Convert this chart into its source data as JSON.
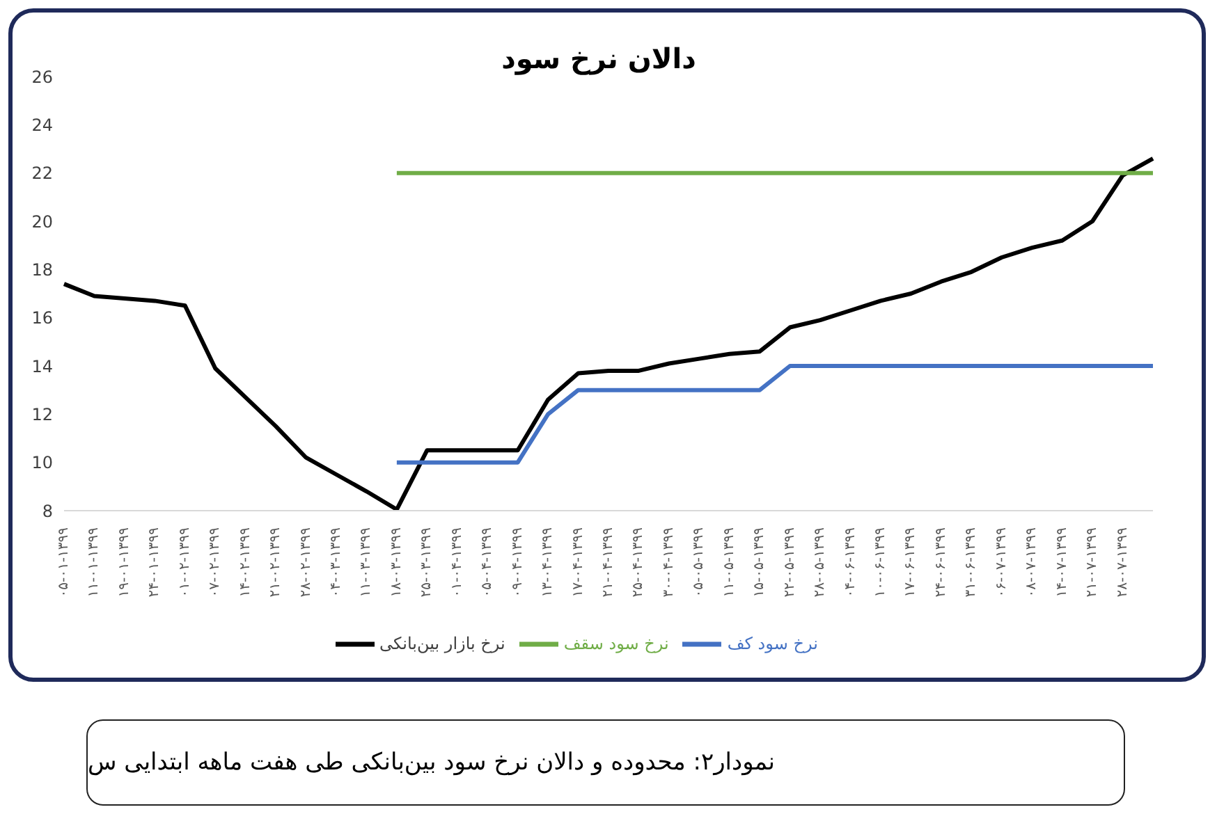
{
  "chart_data": {
    "type": "line",
    "title": "دالان نرخ سود",
    "annotations": [
      "نمودار۲:  محدوده و دالان نرخ سود بین‌بانکی طی هفت ماهه ابتدایی س"
    ],
    "categories": [
      "۰۵-۰۱-۱۳۹۹",
      "۱۱-۰۱-۱۳۹۹",
      "۱۹-۰۱-۱۳۹۹",
      "۲۴-۰۱-۱۳۹۹",
      "۰۱-۰۲-۱۳۹۹",
      "۰۷-۰۲-۱۳۹۹",
      "۱۴-۰۲-۱۳۹۹",
      "۲۱-۰۲-۱۳۹۹",
      "۲۸-۰۲-۱۳۹۹",
      "۰۴-۰۳-۱۳۹۹",
      "۱۱-۰۳-۱۳۹۹",
      "۱۸-۰۳-۱۳۹۹",
      "۲۵-۰۳-۱۳۹۹",
      "۰۱-۰۴-۱۳۹۹",
      "۰۵-۰۴-۱۳۹۹",
      "۰۹-۰۴-۱۳۹۹",
      "۱۳-۰۴-۱۳۹۹",
      "۱۷-۰۴-۱۳۹۹",
      "۲۱-۰۴-۱۳۹۹",
      "۲۵-۰۴-۱۳۹۹",
      "۳۰-۰۴-۱۳۹۹",
      "۰۵-۰۵-۱۳۹۹",
      "۱۱-۰۵-۱۳۹۹",
      "۱۵-۰۵-۱۳۹۹",
      "۲۲-۰۵-۱۳۹۹",
      "۲۸-۰۵-۱۳۹۹",
      "۰۴-۰۶-۱۳۹۹",
      "۱۰-۰۶-۱۳۹۹",
      "۱۷-۰۶-۱۳۹۹",
      "۲۴-۰۶-۱۳۹۹",
      "۳۱-۰۶-۱۳۹۹",
      "۰۶-۰۷-۱۳۹۹",
      "۰۸-۰۷-۱۳۹۹",
      "۱۴-۰۷-۱۳۹۹",
      "۲۱-۰۷-۱۳۹۹",
      "۲۸-۰۷-۱۳۹۹",
      null
    ],
    "series": [
      {
        "name": "نرخ بازار بین‌بانکی",
        "color": "#000000",
        "values": [
          17.4,
          16.9,
          16.8,
          16.7,
          16.5,
          13.9,
          12.7,
          11.5,
          10.2,
          9.5,
          8.8,
          8.05,
          10.5,
          10.5,
          10.5,
          10.5,
          12.6,
          13.7,
          13.8,
          13.8,
          14.1,
          14.3,
          14.5,
          14.6,
          15.6,
          15.9,
          16.3,
          16.7,
          17.0,
          17.5,
          17.9,
          18.5,
          18.9,
          19.2,
          20.0,
          21.9,
          22.6
        ]
      },
      {
        "name": "نرخ سود سقف",
        "color": "#70ad47",
        "values": [
          null,
          null,
          null,
          null,
          null,
          null,
          null,
          null,
          null,
          null,
          null,
          22,
          22,
          22,
          22,
          22,
          22,
          22,
          22,
          22,
          22,
          22,
          22,
          22,
          22,
          22,
          22,
          22,
          22,
          22,
          22,
          22,
          22,
          22,
          22,
          22,
          22
        ]
      },
      {
        "name": "نرخ سود کف",
        "color": "#4472c4",
        "values": [
          null,
          null,
          null,
          null,
          null,
          null,
          null,
          null,
          null,
          null,
          null,
          10,
          10,
          10,
          10,
          10,
          12,
          13,
          13,
          13,
          13,
          13,
          13,
          13,
          14,
          14,
          14,
          14,
          14,
          14,
          14,
          14,
          14,
          14,
          14,
          14,
          14
        ]
      }
    ],
    "ylim": [
      8,
      26
    ],
    "yticks": [
      8,
      10,
      12,
      14,
      16,
      18,
      20,
      22,
      24,
      26
    ],
    "legend": "bottom",
    "marker": "none"
  }
}
